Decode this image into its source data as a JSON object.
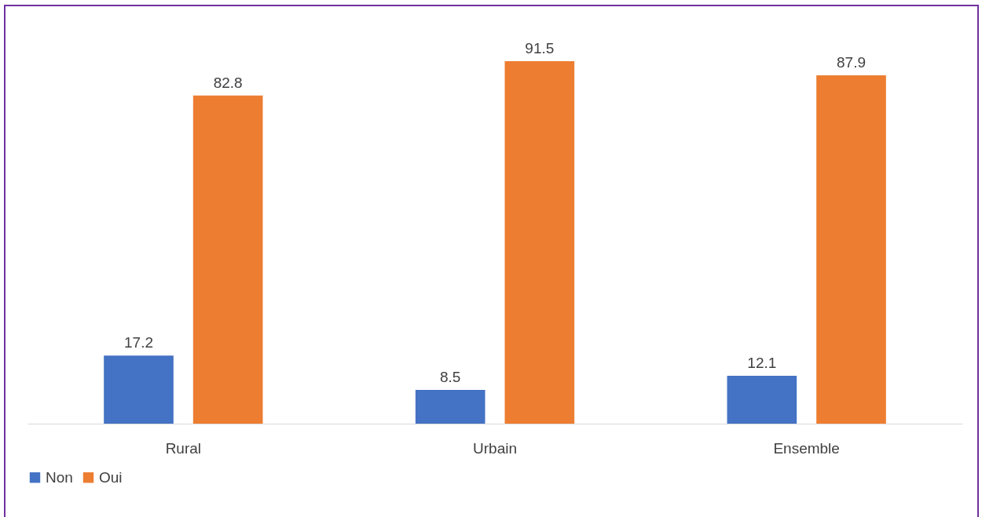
{
  "chart_data": {
    "type": "bar",
    "categories": [
      "Rural",
      "Urbain",
      "Ensemble"
    ],
    "series": [
      {
        "name": "Non",
        "color": "#4472c4",
        "values": [
          17.2,
          8.5,
          12.1
        ]
      },
      {
        "name": "Oui",
        "color": "#ed7d31",
        "values": [
          82.8,
          91.5,
          87.9
        ]
      }
    ],
    "data_labels": true,
    "legend": "bottom",
    "grid": false
  }
}
